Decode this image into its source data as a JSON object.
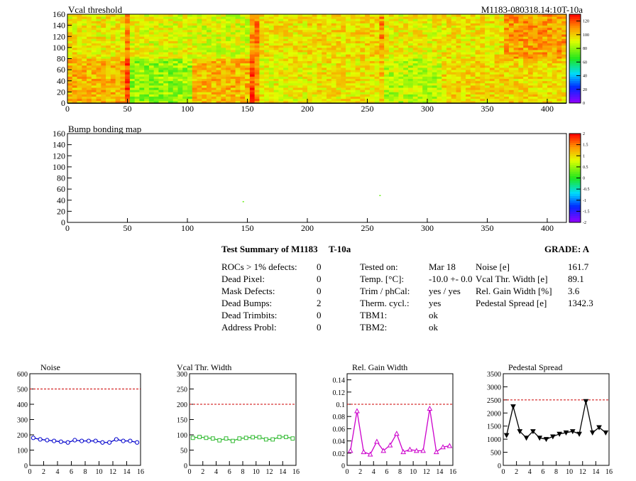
{
  "header": {
    "title_left": "Vcal threshold",
    "title_right": "M1183-080318.14:10T-10a"
  },
  "chart_data": [
    {
      "type": "heatmap",
      "title": "Vcal threshold",
      "x_range": [
        0,
        416
      ],
      "y_range": [
        0,
        160
      ],
      "x_ticks": [
        0,
        50,
        100,
        150,
        200,
        250,
        300,
        350,
        400
      ],
      "y_ticks": [
        0,
        20,
        40,
        60,
        80,
        100,
        120,
        140,
        160
      ],
      "roc_grid": {
        "columns": 8,
        "rows": 2,
        "col_width": 52,
        "row_height": 80
      },
      "roc_mean_threshold": [
        [
          95,
          92,
          90,
          96,
          98,
          94,
          96,
          108
        ],
        [
          104,
          80,
          104,
          94,
          96,
          86,
          98,
          98
        ]
      ],
      "z_range": [
        0,
        130
      ],
      "z_ticks": [
        0,
        20,
        40,
        60,
        80,
        100,
        120
      ]
    },
    {
      "type": "heatmap",
      "title": "Bump bonding map",
      "x_range": [
        0,
        416
      ],
      "y_range": [
        0,
        160
      ],
      "x_ticks": [
        0,
        50,
        100,
        150,
        200,
        250,
        300,
        350,
        400
      ],
      "y_ticks": [
        0,
        20,
        40,
        60,
        80,
        100,
        120,
        140,
        160
      ],
      "marked_pixels": [
        {
          "x": 146,
          "y": 37,
          "value": 0.3
        },
        {
          "x": 260,
          "y": 48,
          "value": 0.3
        }
      ],
      "z_range": [
        -2,
        2
      ],
      "z_ticks": [
        -2,
        -1.5,
        -1,
        -0.5,
        0,
        0.5,
        1,
        1.5,
        2
      ]
    },
    {
      "type": "line",
      "title": "Noise",
      "x": [
        0.5,
        1.5,
        2.5,
        3.5,
        4.5,
        5.5,
        6.5,
        7.5,
        8.5,
        9.5,
        10.5,
        11.5,
        12.5,
        13.5,
        14.5,
        15.5
      ],
      "values": [
        180,
        170,
        165,
        160,
        155,
        150,
        165,
        160,
        160,
        160,
        150,
        150,
        170,
        160,
        160,
        150
      ],
      "errors": [
        10,
        10,
        10,
        10,
        10,
        10,
        10,
        10,
        10,
        10,
        10,
        10,
        10,
        10,
        10,
        10
      ],
      "limit": 500,
      "xlim": [
        0,
        16
      ],
      "ylim": [
        0,
        600
      ],
      "x_ticks": [
        0,
        2,
        4,
        6,
        8,
        10,
        12,
        14,
        16
      ],
      "y_ticks": [
        0,
        100,
        200,
        300,
        400,
        500,
        600
      ],
      "color": "#0000cc",
      "marker": "open-circle"
    },
    {
      "type": "line",
      "title": "Vcal Thr. Width",
      "x": [
        0.5,
        1.5,
        2.5,
        3.5,
        4.5,
        5.5,
        6.5,
        7.5,
        8.5,
        9.5,
        10.5,
        11.5,
        12.5,
        13.5,
        14.5,
        15.5
      ],
      "values": [
        90,
        93,
        90,
        88,
        82,
        88,
        80,
        88,
        90,
        92,
        92,
        85,
        85,
        93,
        93,
        88
      ],
      "limit": 200,
      "xlim": [
        0,
        16
      ],
      "ylim": [
        0,
        300
      ],
      "x_ticks": [
        0,
        2,
        4,
        6,
        8,
        10,
        12,
        14,
        16
      ],
      "y_ticks": [
        0,
        50,
        100,
        150,
        200,
        250,
        300
      ],
      "color": "#33bb33",
      "marker": "open-square"
    },
    {
      "type": "line",
      "title": "Rel. Gain Width",
      "x": [
        0.5,
        1.5,
        2.5,
        3.5,
        4.5,
        5.5,
        6.5,
        7.5,
        8.5,
        9.5,
        10.5,
        11.5,
        12.5,
        13.5,
        14.5,
        15.5
      ],
      "values": [
        0.024,
        0.089,
        0.022,
        0.018,
        0.039,
        0.024,
        0.033,
        0.052,
        0.022,
        0.026,
        0.024,
        0.024,
        0.093,
        0.022,
        0.03,
        0.032
      ],
      "limit": 0.1,
      "xlim": [
        0,
        16
      ],
      "ylim": [
        0,
        0.15
      ],
      "x_ticks": [
        0,
        2,
        4,
        6,
        8,
        10,
        12,
        14,
        16
      ],
      "y_ticks": [
        0,
        0.02,
        0.04,
        0.06,
        0.08,
        0.1,
        0.12,
        0.14
      ],
      "y_tick_labels": [
        "0",
        "0.02",
        "0.04",
        "0.06",
        "0.08",
        "0.1",
        "0.12",
        "0.14"
      ],
      "color": "#cc00cc",
      "marker": "open-triangle"
    },
    {
      "type": "line",
      "title": "Pedestal Spread",
      "x": [
        0.5,
        1.5,
        2.5,
        3.5,
        4.5,
        5.5,
        6.5,
        7.5,
        8.5,
        9.5,
        10.5,
        11.5,
        12.5,
        13.5,
        14.5,
        15.5
      ],
      "values": [
        1150,
        2250,
        1300,
        1050,
        1300,
        1050,
        1000,
        1100,
        1200,
        1250,
        1300,
        1200,
        2450,
        1250,
        1450,
        1250
      ],
      "limit": 2500,
      "xlim": [
        0,
        16
      ],
      "ylim": [
        0,
        3500
      ],
      "x_ticks": [
        0,
        2,
        4,
        6,
        8,
        10,
        12,
        14,
        16
      ],
      "y_ticks": [
        0,
        500,
        1000,
        1500,
        2000,
        2500,
        3000,
        3500
      ],
      "color": "#000000",
      "marker": "filled-down-triangle"
    }
  ],
  "summary": {
    "title": "Test Summary of M1183",
    "temp_label": "T-10a",
    "grade": "GRADE:  A",
    "defects": [
      {
        "label": "ROCs > 1% defects:",
        "value": "0"
      },
      {
        "label": "Dead Pixel:",
        "value": "0"
      },
      {
        "label": "Mask Defects:",
        "value": "0"
      },
      {
        "label": "Dead Bumps:",
        "value": "2"
      },
      {
        "label": "Dead Trimbits:",
        "value": "0"
      },
      {
        "label": "Address Probl:",
        "value": "0"
      }
    ],
    "conditions": [
      {
        "label": "Tested on:",
        "value": "Mar 18"
      },
      {
        "label": "Temp. [°C]:",
        "value": "-10.0 +- 0.0"
      },
      {
        "label": "Trim / phCal:",
        "value": "yes / yes"
      },
      {
        "label": "Therm. cycl.:",
        "value": "yes"
      },
      {
        "label": "TBM1:",
        "value": "ok"
      },
      {
        "label": "TBM2:",
        "value": "ok"
      }
    ],
    "results": [
      {
        "label": "Noise [e]",
        "value": "161.7"
      },
      {
        "label": "Vcal Thr. Width [e]",
        "value": "89.1"
      },
      {
        "label": "Rel. Gain Width [%]",
        "value": "3.6"
      },
      {
        "label": "Pedestal Spread [e]",
        "value": "1342.3"
      }
    ]
  },
  "colors": {
    "limit_line": "#cc0000",
    "frame": "#000000"
  }
}
